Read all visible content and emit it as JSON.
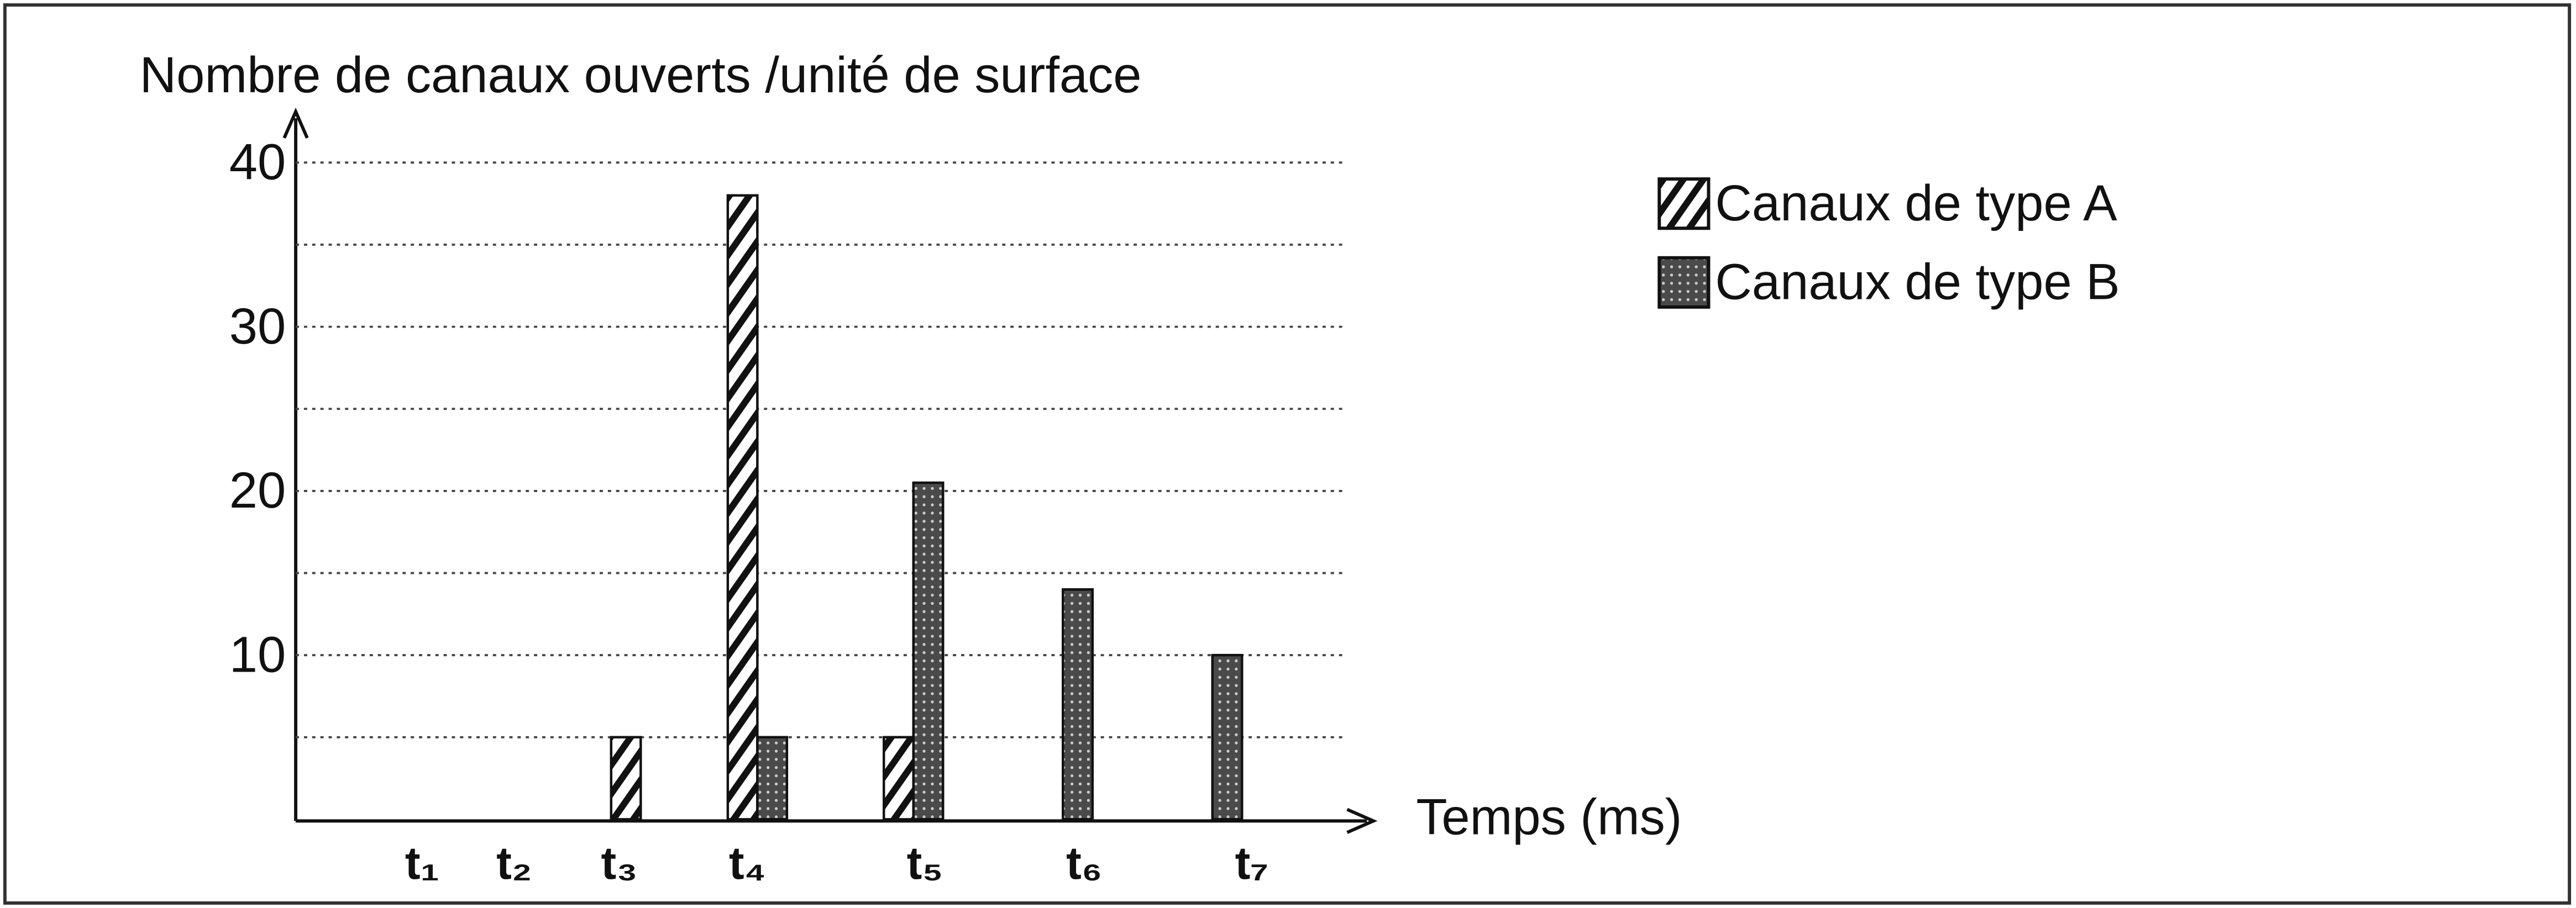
{
  "chart_data": {
    "type": "bar",
    "title": "Nombre de canaux ouverts /unité de surface",
    "x_label": "Temps (ms)",
    "categories": [
      "t₁",
      "t₂",
      "t₃",
      "t₄",
      "t₅",
      "t₆",
      "t₇"
    ],
    "series": [
      {
        "name": "Canaux de type A",
        "color": "#ffffff",
        "pattern": "hatch",
        "values": [
          0,
          0,
          5,
          38,
          5,
          0,
          0
        ]
      },
      {
        "name": "Canaux de type B",
        "color": "#4a4a4a",
        "pattern": "dots",
        "values": [
          0,
          0,
          0,
          5,
          20.5,
          14,
          10
        ]
      }
    ],
    "ylim": [
      0,
      40
    ],
    "yticks": [
      10,
      20,
      30,
      40
    ],
    "minor_yticks": [
      5,
      15,
      25,
      35
    ],
    "grid": true,
    "legend": "upper right"
  }
}
